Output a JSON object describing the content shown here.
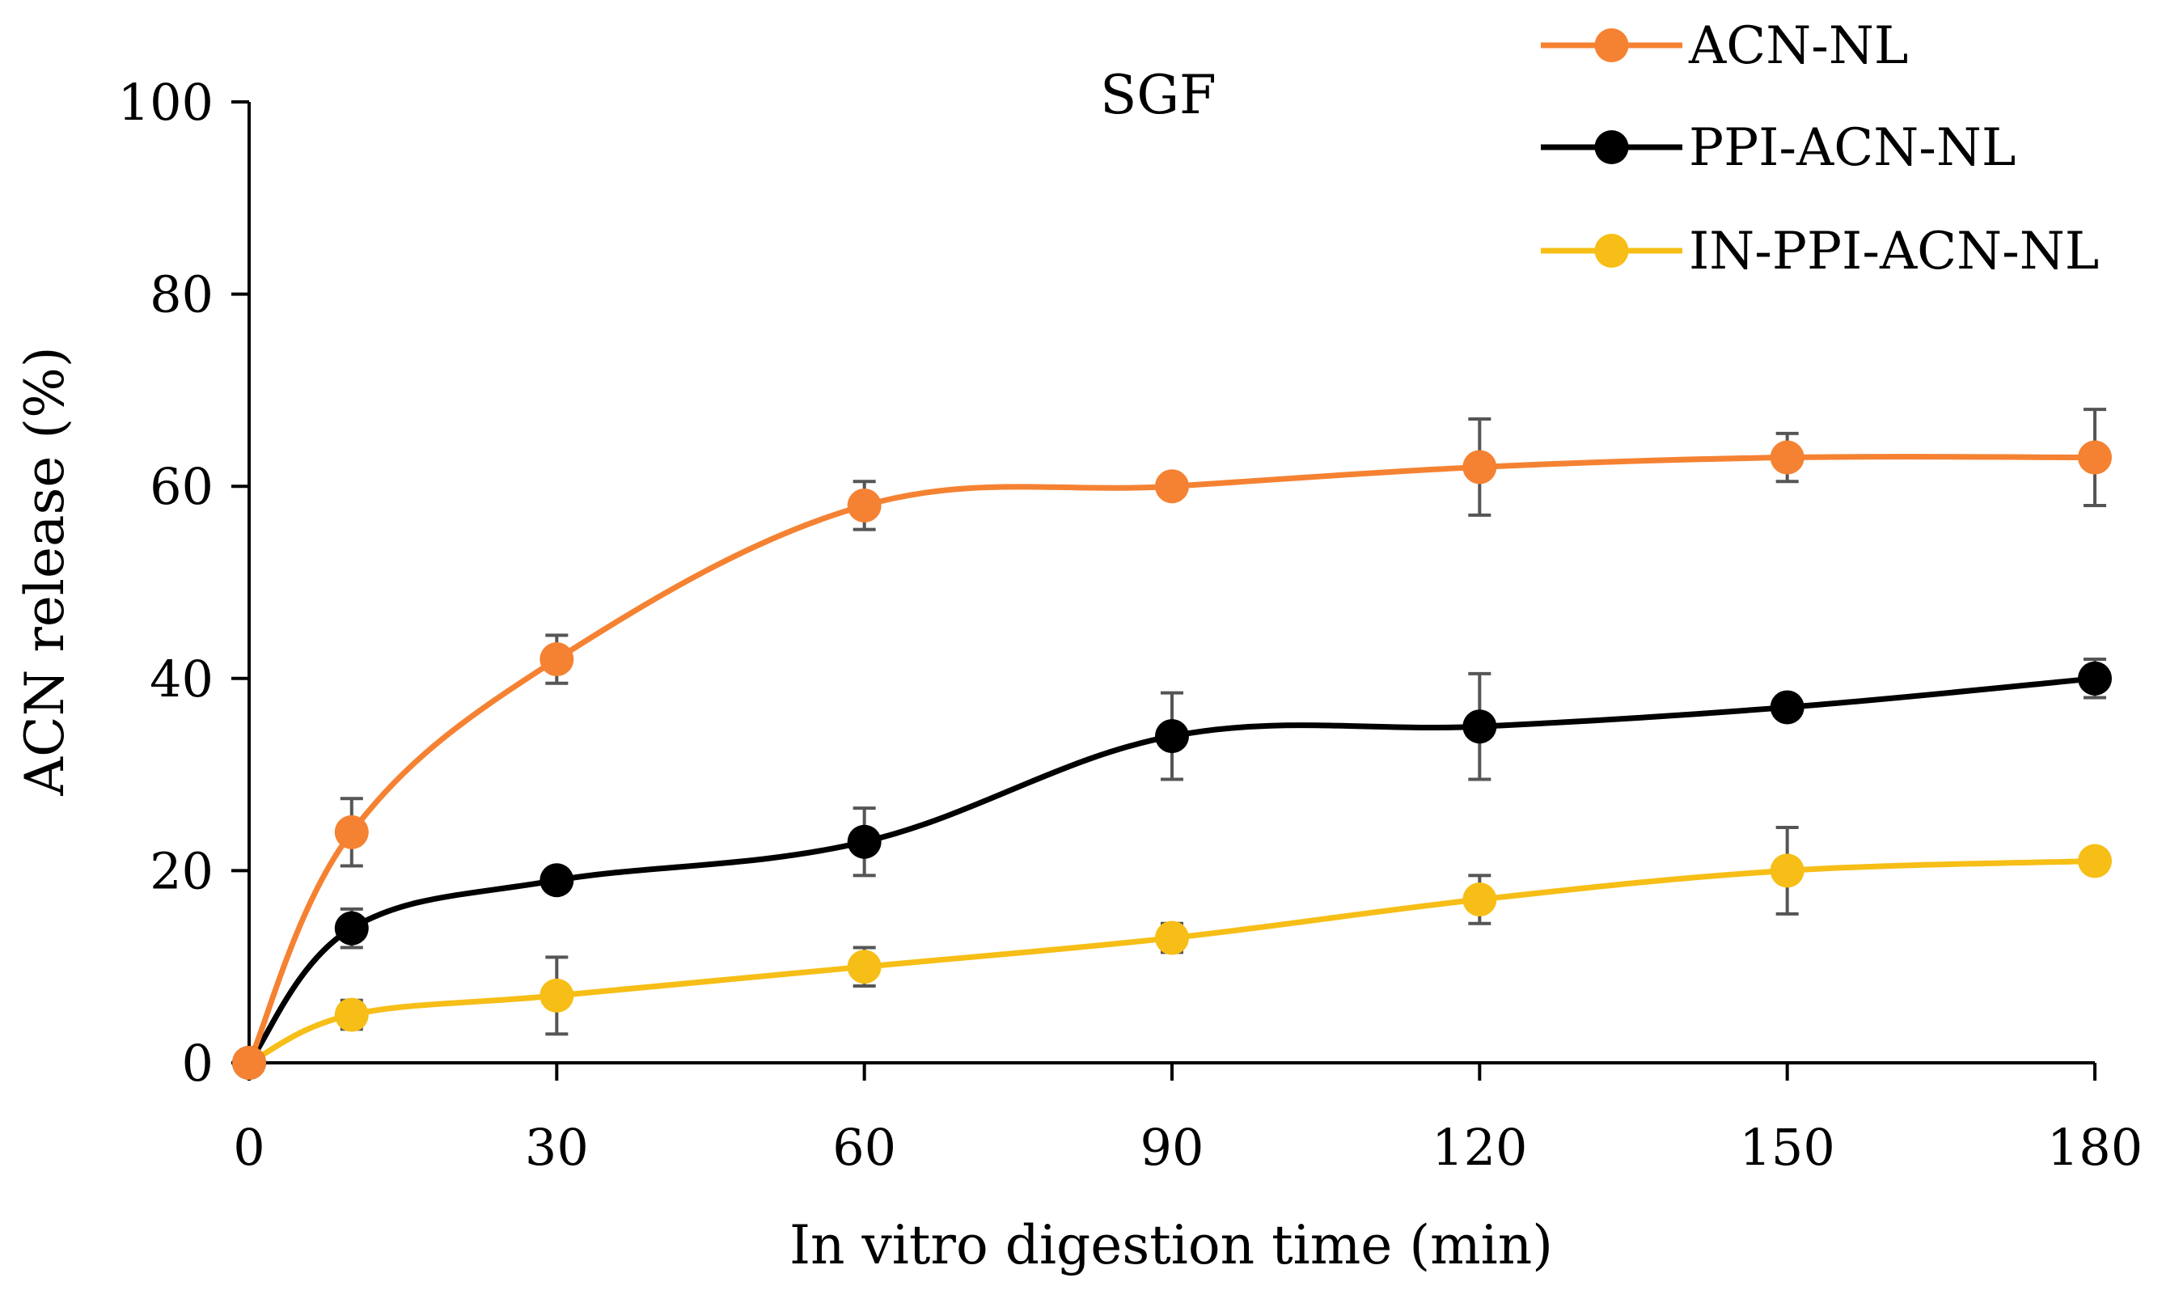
{
  "chart_data": {
    "type": "line",
    "title": "SGF",
    "xlabel": "In vitro digestion time (min)",
    "ylabel": "ACN release (%)",
    "xlim": [
      0,
      180
    ],
    "ylim": [
      0,
      100
    ],
    "x_ticks": [
      "0",
      "30",
      "60",
      "90",
      "120",
      "150",
      "180"
    ],
    "y_ticks": [
      "0",
      "20",
      "40",
      "60",
      "80",
      "100"
    ],
    "grid": false,
    "legend_position": "top-right",
    "x": [
      0,
      10,
      30,
      60,
      90,
      120,
      150,
      180
    ],
    "series": [
      {
        "name": "ACN-NL",
        "color": "#F58232",
        "values": [
          0,
          24,
          42,
          58,
          60,
          62,
          63,
          63
        ],
        "errors": [
          0,
          3.5,
          2.5,
          2.5,
          0,
          5,
          2.5,
          5
        ]
      },
      {
        "name": "PPI-ACN-NL",
        "color": "#000000",
        "values": [
          0,
          14,
          19,
          23,
          34,
          35,
          37,
          40
        ],
        "errors": [
          0,
          2,
          0,
          3.5,
          4.5,
          5.5,
          0,
          2
        ]
      },
      {
        "name": "IN-PPI-ACN-NL",
        "color": "#F6BE16",
        "values": [
          0,
          5,
          7,
          10,
          13,
          17,
          20,
          21
        ],
        "errors": [
          0,
          1.5,
          4,
          2,
          1.5,
          2.5,
          4.5,
          0
        ]
      }
    ],
    "errorbar_color": "#555555"
  }
}
